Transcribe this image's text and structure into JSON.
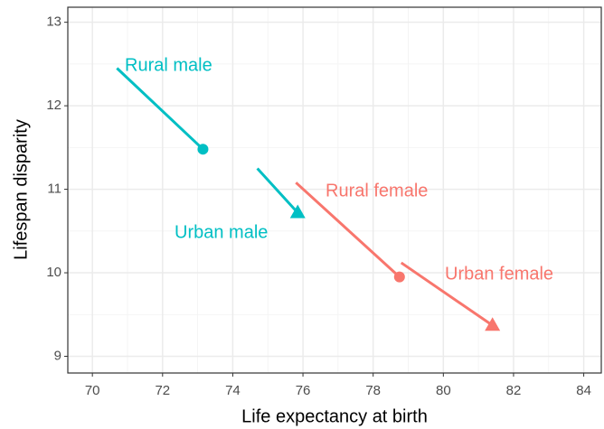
{
  "chart_data": {
    "type": "scatter",
    "x_label": "Life expectancy at birth",
    "y_label": "Lifespan disparity",
    "xlim": [
      69.3,
      84.5
    ],
    "xticks": [
      70,
      72,
      74,
      76,
      78,
      80,
      82,
      84
    ],
    "ylim": [
      8.8,
      13.18
    ],
    "yticks": [
      9,
      10,
      11,
      12,
      13
    ],
    "grid": true,
    "series": [
      {
        "name": "Rural male",
        "color": "#00bfc4",
        "shape": "circle",
        "x": 73.15,
        "values": 11.48,
        "line_from": [
          70.7,
          12.45
        ]
      },
      {
        "name": "Urban male",
        "color": "#00bfc4",
        "shape": "triangle",
        "x": 75.85,
        "values": 10.72,
        "line_from": [
          74.7,
          11.25
        ]
      },
      {
        "name": "Rural female",
        "color": "#f8766d",
        "shape": "circle",
        "x": 78.75,
        "values": 9.95,
        "line_from": [
          75.8,
          11.08
        ]
      },
      {
        "name": "Urban female",
        "color": "#f8766d",
        "shape": "triangle",
        "x": 81.4,
        "values": 9.37,
        "line_from": [
          78.8,
          10.12
        ]
      }
    ]
  }
}
